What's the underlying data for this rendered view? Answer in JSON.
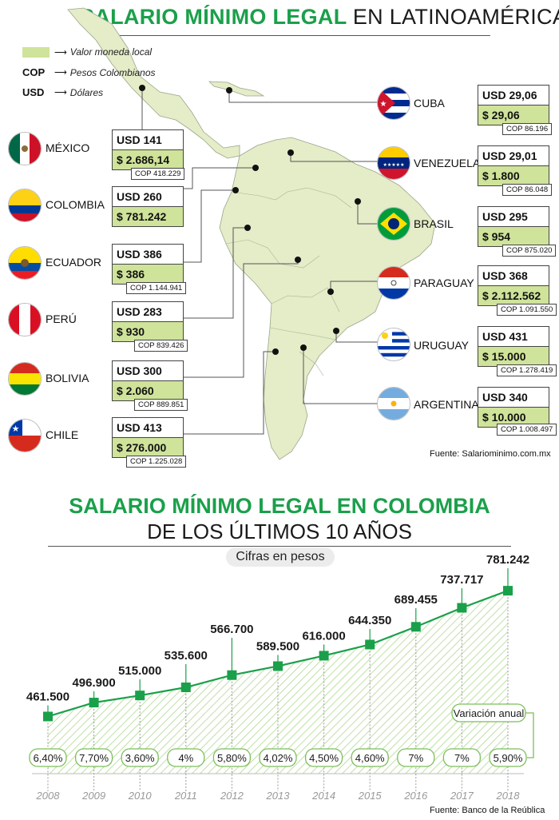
{
  "header": {
    "title_green": "SALARIO MÍNIMO LEGAL",
    "title_black": "EN LATINOAMÉRICA"
  },
  "legend": [
    {
      "code": "",
      "text": "Valor moneda local",
      "swatch": "#cfe39a"
    },
    {
      "code": "COP",
      "text": "Pesos Colombianos"
    },
    {
      "code": "USD",
      "text": "Dólares"
    }
  ],
  "countries": [
    {
      "id": "mexico",
      "name": "MÉXICO",
      "usd": "USD 141",
      "local": "$ 2.686,14",
      "cop": "COP 418.229"
    },
    {
      "id": "colombia",
      "name": "COLOMBIA",
      "usd": "USD 260",
      "local": "$ 781.242",
      "cop": ""
    },
    {
      "id": "ecuador",
      "name": "ECUADOR",
      "usd": "USD 386",
      "local": "$ 386",
      "cop": "COP 1.144.941"
    },
    {
      "id": "peru",
      "name": "PERÚ",
      "usd": "USD 283",
      "local": "$ 930",
      "cop": "COP 839.426"
    },
    {
      "id": "bolivia",
      "name": "BOLIVIA",
      "usd": "USD 300",
      "local": "$ 2.060",
      "cop": "COP 889.851"
    },
    {
      "id": "chile",
      "name": "CHILE",
      "usd": "USD 413",
      "local": "$ 276.000",
      "cop": "COP 1.225.028"
    },
    {
      "id": "cuba",
      "name": "CUBA",
      "usd": "USD 29,06",
      "local": "$ 29,06",
      "cop": "COP 86.196"
    },
    {
      "id": "venezuela",
      "name": "VENEZUELA",
      "usd": "USD 29,01",
      "local": "$ 1.800",
      "cop": "COP 86.048"
    },
    {
      "id": "brasil",
      "name": "BRASIL",
      "usd": "USD 295",
      "local": "$ 954",
      "cop": "COP 875.020"
    },
    {
      "id": "paraguay",
      "name": "PARAGUAY",
      "usd": "USD 368",
      "local": "$ 2.112.562",
      "cop": "COP 1.091.550"
    },
    {
      "id": "uruguay",
      "name": "URUGUAY",
      "usd": "USD 431",
      "local": "$ 15.000",
      "cop": "COP 1.278.419"
    },
    {
      "id": "argentina",
      "name": "ARGENTINA",
      "usd": "USD 340",
      "local": "$ 10.000",
      "cop": "COP 1.008.497"
    }
  ],
  "source_map": "Fuente: Salariominimo.com.mx",
  "colors": {
    "accent_green": "#1aa04a",
    "local_swatch": "#cfe39a",
    "map_fill": "#e4ecc8"
  },
  "chart_data": {
    "type": "line",
    "title": "SALARIO MÍNIMO LEGAL EN COLOMBIA",
    "subtitle": "DE LOS ÚLTIMOS 10 AÑOS",
    "note": "Cifras en pesos",
    "x": [
      "2008",
      "2009",
      "2010",
      "2011",
      "2012",
      "2013",
      "2014",
      "2015",
      "2016",
      "2017",
      "2018"
    ],
    "values": [
      461500,
      496900,
      515000,
      535600,
      566700,
      589500,
      616000,
      644350,
      689455,
      737717,
      781242
    ],
    "value_labels": [
      "461.500",
      "496.900",
      "515.000",
      "535.600",
      "566.700",
      "589.500",
      "616.000",
      "644.350",
      "689.455",
      "737.717",
      "781.242"
    ],
    "variation_label": "Variación anual",
    "variation": [
      "6,40%",
      "7,70%",
      "3,60%",
      "4%",
      "5,80%",
      "4,02%",
      "4,50%",
      "4,60%",
      "7%",
      "7%",
      "5,90%"
    ],
    "ylim": [
      300000,
      820000
    ],
    "line_color": "#1aa04a",
    "source": "Fuente: Banco de la Reública"
  }
}
